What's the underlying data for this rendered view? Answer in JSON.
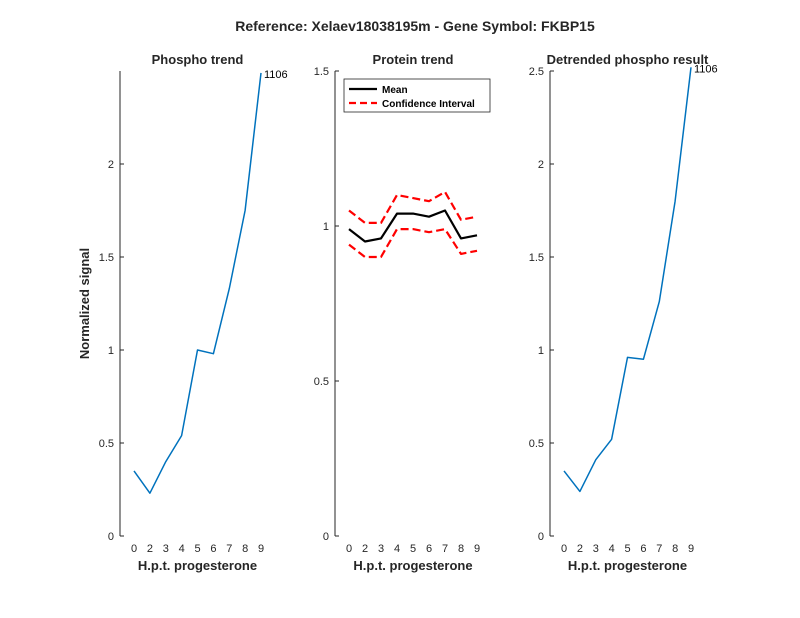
{
  "suptitle": "Reference:  Xelaev18038195m - Gene Symbol:  FKBP15",
  "chart_data": [
    {
      "type": "line",
      "title": "Phospho trend",
      "xlabel": "H.p.t. progesterone",
      "ylabel": "Normalized signal",
      "categories": [
        "0",
        "2",
        "3",
        "4",
        "5",
        "6",
        "7",
        "8",
        "9"
      ],
      "ylim": [
        0,
        2.5
      ],
      "yticks": [
        0,
        0.5,
        1,
        1.5,
        2
      ],
      "ytick_labels": [
        "0",
        "0.5",
        "1",
        "1.5",
        "2"
      ],
      "series": [
        {
          "values": [
            0.35,
            0.23,
            0.4,
            0.54,
            1.0,
            0.98,
            1.33,
            1.75,
            2.49
          ],
          "color": "#0072BD"
        }
      ],
      "annotations": [
        {
          "index": 8,
          "text": "1106"
        }
      ]
    },
    {
      "type": "line",
      "title": "Protein trend",
      "xlabel": "H.p.t. progesterone",
      "ylabel": "",
      "categories": [
        "0",
        "2",
        "3",
        "4",
        "5",
        "6",
        "7",
        "8",
        "9"
      ],
      "ylim": [
        0,
        1.5
      ],
      "yticks": [
        0,
        0.5,
        1,
        1.5
      ],
      "ytick_labels": [
        "0",
        "0.5",
        "1",
        "1.5"
      ],
      "series": [
        {
          "name": "Mean",
          "values": [
            0.99,
            0.95,
            0.96,
            1.04,
            1.04,
            1.03,
            1.05,
            0.96,
            0.97
          ],
          "color": "#000000",
          "style": "solid"
        },
        {
          "name": "Confidence Interval",
          "values": [
            1.05,
            1.01,
            1.01,
            1.1,
            1.09,
            1.08,
            1.11,
            1.02,
            1.03
          ],
          "color": "#FF0000",
          "style": "dashed"
        },
        {
          "name": "",
          "values": [
            0.94,
            0.9,
            0.9,
            0.99,
            0.99,
            0.98,
            0.99,
            0.91,
            0.92
          ],
          "color": "#FF0000",
          "style": "dashed"
        }
      ],
      "legend": {
        "placement": "top-left",
        "entries": [
          "Mean",
          "Confidence Interval"
        ]
      }
    },
    {
      "type": "line",
      "title": "Detrended phospho result",
      "xlabel": "H.p.t. progesterone",
      "ylabel": "",
      "categories": [
        "0",
        "2",
        "3",
        "4",
        "5",
        "6",
        "7",
        "8",
        "9"
      ],
      "ylim": [
        0,
        2.5
      ],
      "yticks": [
        0,
        0.5,
        1,
        1.5,
        2,
        2.5
      ],
      "ytick_labels": [
        "0",
        "0.5",
        "1",
        "1.5",
        "2",
        "2.5"
      ],
      "series": [
        {
          "values": [
            0.35,
            0.24,
            0.41,
            0.52,
            0.96,
            0.95,
            1.26,
            1.8,
            2.52
          ],
          "color": "#0072BD"
        }
      ],
      "annotations": [
        {
          "index": 8,
          "text": "1106"
        }
      ]
    }
  ]
}
